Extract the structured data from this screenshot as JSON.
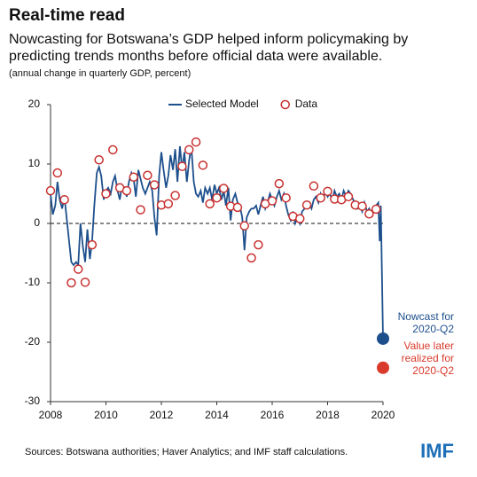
{
  "chart_data": {
    "type": "line",
    "title": "Real-time read",
    "subtitle": [
      "Nowcasting for Botswana’s GDP helped inform policymaking by",
      "predicting trends months before official data were available."
    ],
    "note": "(annual change in quarterly GDP, percent)",
    "xlim": [
      2008,
      2020
    ],
    "xticks": [
      2008,
      2010,
      2012,
      2014,
      2016,
      2018,
      2020
    ],
    "ylim": [
      -30,
      20
    ],
    "yticks": [
      -30,
      -20,
      -10,
      0,
      10,
      20
    ],
    "zero_line": true,
    "legend": "top",
    "series": [
      {
        "name": "Selected Model",
        "type": "line",
        "color": "#1d4f8c",
        "x": [
          2008.0,
          2008.08,
          2008.17,
          2008.25,
          2008.33,
          2008.42,
          2008.5,
          2008.58,
          2008.67,
          2008.75,
          2008.83,
          2008.92,
          2009.0,
          2009.08,
          2009.17,
          2009.25,
          2009.33,
          2009.42,
          2009.5,
          2009.58,
          2009.67,
          2009.75,
          2009.83,
          2009.92,
          2010.0,
          2010.08,
          2010.17,
          2010.25,
          2010.33,
          2010.42,
          2010.5,
          2010.58,
          2010.67,
          2010.75,
          2010.83,
          2010.92,
          2011.0,
          2011.08,
          2011.17,
          2011.25,
          2011.33,
          2011.42,
          2011.5,
          2011.58,
          2011.67,
          2011.75,
          2011.83,
          2011.92,
          2012.0,
          2012.08,
          2012.17,
          2012.25,
          2012.33,
          2012.42,
          2012.5,
          2012.58,
          2012.67,
          2012.75,
          2012.83,
          2012.92,
          2013.0,
          2013.08,
          2013.17,
          2013.25,
          2013.33,
          2013.42,
          2013.5,
          2013.58,
          2013.67,
          2013.75,
          2013.83,
          2013.92,
          2014.0,
          2014.08,
          2014.17,
          2014.25,
          2014.33,
          2014.42,
          2014.5,
          2014.58,
          2014.67,
          2014.75,
          2014.83,
          2014.92,
          2015.0,
          2015.08,
          2015.17,
          2015.25,
          2015.33,
          2015.42,
          2015.5,
          2015.58,
          2015.67,
          2015.75,
          2015.83,
          2015.92,
          2016.0,
          2016.08,
          2016.17,
          2016.25,
          2016.33,
          2016.42,
          2016.5,
          2016.58,
          2016.67,
          2016.75,
          2016.83,
          2016.92,
          2017.0,
          2017.08,
          2017.17,
          2017.25,
          2017.33,
          2017.42,
          2017.5,
          2017.58,
          2017.67,
          2017.75,
          2017.83,
          2017.92,
          2018.0,
          2018.08,
          2018.17,
          2018.25,
          2018.33,
          2018.42,
          2018.5,
          2018.58,
          2018.67,
          2018.75,
          2018.83,
          2018.92,
          2019.0,
          2019.08,
          2019.17,
          2019.25,
          2019.33,
          2019.42,
          2019.5,
          2019.58,
          2019.67,
          2019.75,
          2019.83,
          2019.88,
          2019.92,
          2020.0
        ],
        "values": [
          5.0,
          1.5,
          3.0,
          7.0,
          4.0,
          2.5,
          4.5,
          1.0,
          -3.0,
          -6.5,
          -7.0,
          -6.5,
          -7.0,
          0.0,
          -4.0,
          -6.5,
          -1.0,
          -6.0,
          -3.0,
          3.0,
          8.5,
          9.5,
          8.0,
          4.0,
          5.5,
          6.0,
          5.0,
          7.0,
          8.0,
          5.5,
          4.0,
          6.5,
          6.0,
          4.5,
          7.0,
          8.5,
          7.5,
          4.5,
          9.0,
          7.5,
          6.0,
          5.0,
          6.0,
          7.0,
          5.5,
          1.0,
          -2.0,
          8.0,
          12.0,
          9.0,
          6.0,
          8.0,
          11.5,
          9.0,
          12.5,
          7.0,
          13.0,
          9.0,
          12.0,
          7.0,
          10.5,
          13.0,
          7.0,
          5.0,
          4.5,
          5.5,
          3.5,
          6.0,
          5.0,
          6.0,
          4.0,
          6.5,
          5.0,
          6.0,
          4.0,
          5.5,
          3.0,
          6.0,
          0.5,
          4.0,
          5.0,
          3.5,
          3.0,
          1.0,
          -4.5,
          1.0,
          2.0,
          2.5,
          2.5,
          3.0,
          1.5,
          3.0,
          4.5,
          2.5,
          3.5,
          5.0,
          4.0,
          3.0,
          4.5,
          5.5,
          4.0,
          5.0,
          3.0,
          1.5,
          0.5,
          2.0,
          0.0,
          1.0,
          0.0,
          2.0,
          2.5,
          3.0,
          3.5,
          2.5,
          4.0,
          4.5,
          3.5,
          5.0,
          4.0,
          5.5,
          4.5,
          5.0,
          4.0,
          5.5,
          4.5,
          5.0,
          4.0,
          5.5,
          4.5,
          5.5,
          5.0,
          4.0,
          3.5,
          2.5,
          3.0,
          2.0,
          3.5,
          2.0,
          2.5,
          1.5,
          2.5,
          3.0,
          3.5,
          -3.0,
          3.0,
          -19.4
        ]
      },
      {
        "name": "Data",
        "type": "scatter",
        "color": "#c8312f",
        "x": [
          2008.0,
          2008.25,
          2008.5,
          2008.75,
          2009.0,
          2009.25,
          2009.5,
          2009.75,
          2010.0,
          2010.25,
          2010.5,
          2010.75,
          2011.0,
          2011.25,
          2011.5,
          2011.75,
          2012.0,
          2012.25,
          2012.5,
          2012.75,
          2013.0,
          2013.25,
          2013.5,
          2013.75,
          2014.0,
          2014.25,
          2014.5,
          2014.75,
          2015.0,
          2015.25,
          2015.5,
          2015.75,
          2016.0,
          2016.25,
          2016.5,
          2016.75,
          2017.0,
          2017.25,
          2017.5,
          2017.75,
          2018.0,
          2018.25,
          2018.5,
          2018.75,
          2019.0,
          2019.25,
          2019.5,
          2019.75
        ],
        "values": [
          5.5,
          8.5,
          4.0,
          -10.0,
          -7.7,
          -9.9,
          -3.6,
          10.7,
          5.0,
          12.4,
          6.0,
          5.5,
          7.8,
          2.3,
          8.1,
          6.5,
          3.1,
          3.3,
          4.7,
          9.6,
          12.4,
          13.7,
          9.8,
          3.3,
          4.3,
          5.9,
          2.9,
          2.7,
          -0.4,
          -5.8,
          -3.6,
          3.3,
          3.8,
          6.7,
          4.3,
          1.2,
          0.8,
          3.1,
          6.3,
          4.3,
          5.4,
          4.1,
          4.0,
          4.5,
          3.1,
          2.9,
          1.6,
          2.4
        ]
      }
    ],
    "highlights": [
      {
        "x": 2020.0,
        "value": -19.4,
        "color": "#1d4f8c",
        "label": [
          "Nowcast for",
          "2020-Q2"
        ]
      },
      {
        "x": 2020.0,
        "value": -24.3,
        "color": "#d93a2b",
        "label": [
          "Value later",
          "realized for",
          "2020-Q2"
        ]
      }
    ],
    "source": "Sources: Botswana authorities; Haver Analytics; and IMF staff calculations.",
    "logo": "IMF"
  }
}
